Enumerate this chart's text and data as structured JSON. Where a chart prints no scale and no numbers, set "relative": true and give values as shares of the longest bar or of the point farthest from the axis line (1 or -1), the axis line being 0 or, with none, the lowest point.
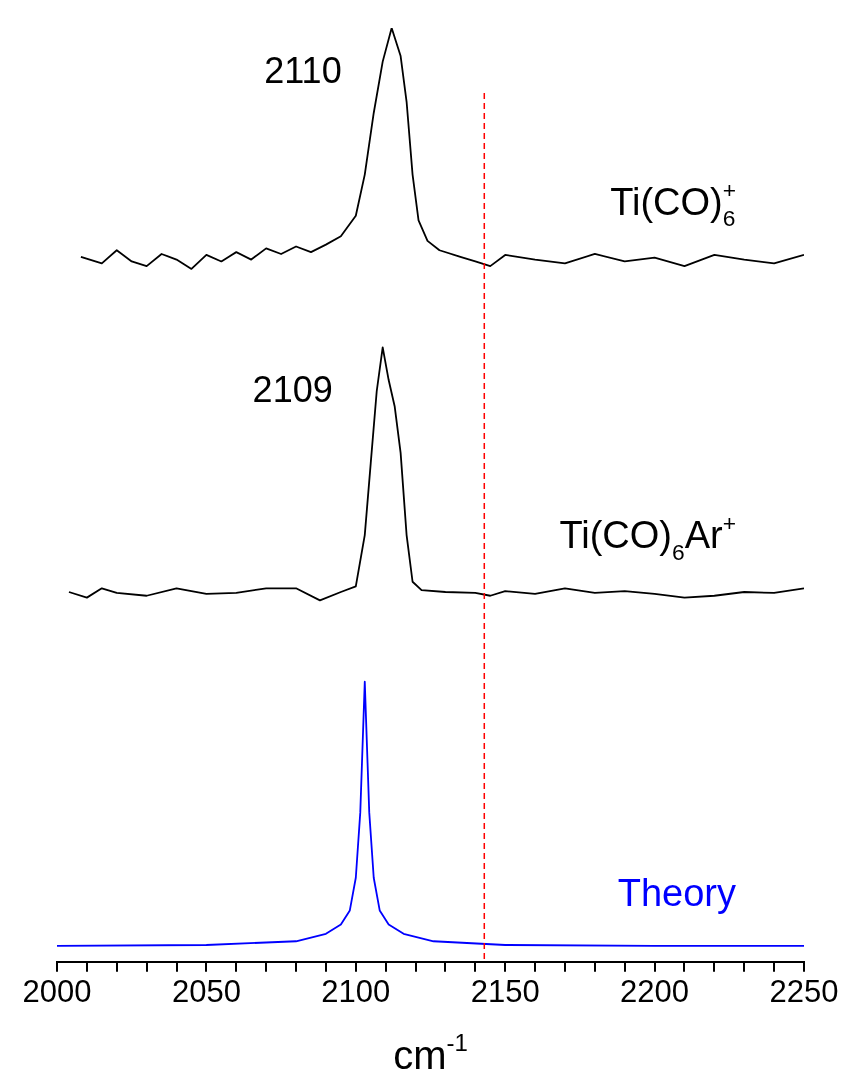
{
  "chart_data": {
    "type": "line",
    "relative": true,
    "xlabel": "cm$^{-1}$",
    "xlim": [
      2000,
      2250
    ],
    "xticks": [
      2000,
      {
        "value": 2010,
        "label": null
      },
      {
        "value": 2020,
        "label": null
      },
      {
        "value": 2030,
        "label": null
      },
      {
        "value": 2040,
        "label": null
      },
      2050,
      {
        "value": 2060,
        "label": null
      },
      {
        "value": 2070,
        "label": null
      },
      {
        "value": 2080,
        "label": null
      },
      {
        "value": 2090,
        "label": null
      },
      2100,
      {
        "value": 2110,
        "label": null
      },
      {
        "value": 2120,
        "label": null
      },
      {
        "value": 2130,
        "label": null
      },
      {
        "value": 2140,
        "label": null
      },
      2150,
      {
        "value": 2160,
        "label": null
      },
      {
        "value": 2170,
        "label": null
      },
      {
        "value": 2180,
        "label": null
      },
      {
        "value": 2190,
        "label": null
      },
      2200,
      {
        "value": 2210,
        "label": null
      },
      {
        "value": 2220,
        "label": null
      },
      {
        "value": 2230,
        "label": null
      },
      {
        "value": 2240,
        "label": null
      },
      2250
    ],
    "grid": false,
    "legend": false,
    "marker": "none",
    "line_style": "solid",
    "tick_labels": "x",
    "series": [
      {
        "name": "Ti(CO)$_{6}$$^{+}$",
        "color": "#000000",
        "x": [
          2008,
          2015,
          2020,
          2025,
          2030,
          2035,
          2040,
          2045,
          2050,
          2055,
          2060,
          2065,
          2070,
          2075,
          2080,
          2085,
          2090,
          2095,
          2100,
          2103,
          2106,
          2109,
          2112,
          2115,
          2117,
          2119,
          2121,
          2124,
          2128,
          2135,
          2140,
          2145,
          2150,
          2160,
          2170,
          2180,
          2190,
          2200,
          2210,
          2220,
          2230,
          2240,
          2250
        ],
        "values": [
          0.755,
          0.748,
          0.762,
          0.75,
          0.745,
          0.758,
          0.752,
          0.742,
          0.757,
          0.75,
          0.76,
          0.752,
          0.764,
          0.758,
          0.766,
          0.76,
          0.768,
          0.777,
          0.799,
          0.843,
          0.909,
          0.964,
          1.0,
          0.97,
          0.921,
          0.843,
          0.794,
          0.772,
          0.762,
          0.755,
          0.75,
          0.745,
          0.757,
          0.752,
          0.748,
          0.758,
          0.75,
          0.754,
          0.745,
          0.757,
          0.752,
          0.748,
          0.757
        ]
      },
      {
        "name": "Ti(CO)$_{6}$Ar$^{+}$",
        "color": "#000000",
        "x": [
          2004,
          2010,
          2015,
          2020,
          2030,
          2040,
          2050,
          2060,
          2070,
          2080,
          2088,
          2095,
          2100,
          2103,
          2105,
          2107,
          2109,
          2111,
          2113,
          2115,
          2117,
          2119,
          2122,
          2130,
          2140,
          2145,
          2150,
          2160,
          2170,
          2180,
          2190,
          2200,
          2210,
          2220,
          2230,
          2240,
          2250
        ],
        "values": [
          0.396,
          0.39,
          0.4,
          0.395,
          0.392,
          0.4,
          0.394,
          0.395,
          0.4,
          0.4,
          0.387,
          0.396,
          0.402,
          0.457,
          0.534,
          0.611,
          0.658,
          0.623,
          0.595,
          0.545,
          0.457,
          0.407,
          0.398,
          0.396,
          0.395,
          0.392,
          0.397,
          0.394,
          0.4,
          0.395,
          0.397,
          0.394,
          0.39,
          0.392,
          0.396,
          0.395,
          0.4
        ]
      },
      {
        "name": "Theory",
        "color": "#0000ff",
        "x": [
          2000,
          2050,
          2080,
          2090,
          2095,
          2098,
          2100,
          2101.5,
          2103,
          2104.5,
          2106,
          2108,
          2111,
          2116,
          2126,
          2150,
          2200,
          2250
        ],
        "values": [
          0.017,
          0.018,
          0.022,
          0.03,
          0.04,
          0.055,
          0.09,
          0.16,
          0.3,
          0.16,
          0.09,
          0.055,
          0.04,
          0.03,
          0.022,
          0.018,
          0.017,
          0.017
        ]
      }
    ],
    "ref_lines": [
      {
        "axis": "x",
        "value": 2143,
        "label": null,
        "color": "#ff0000",
        "line_style": "dashed"
      }
    ],
    "annotations": [
      {
        "text": "2110",
        "x": 2112,
        "y": 1.0
      },
      {
        "text": "2109",
        "x": 2109,
        "y": 0.658
      }
    ]
  }
}
